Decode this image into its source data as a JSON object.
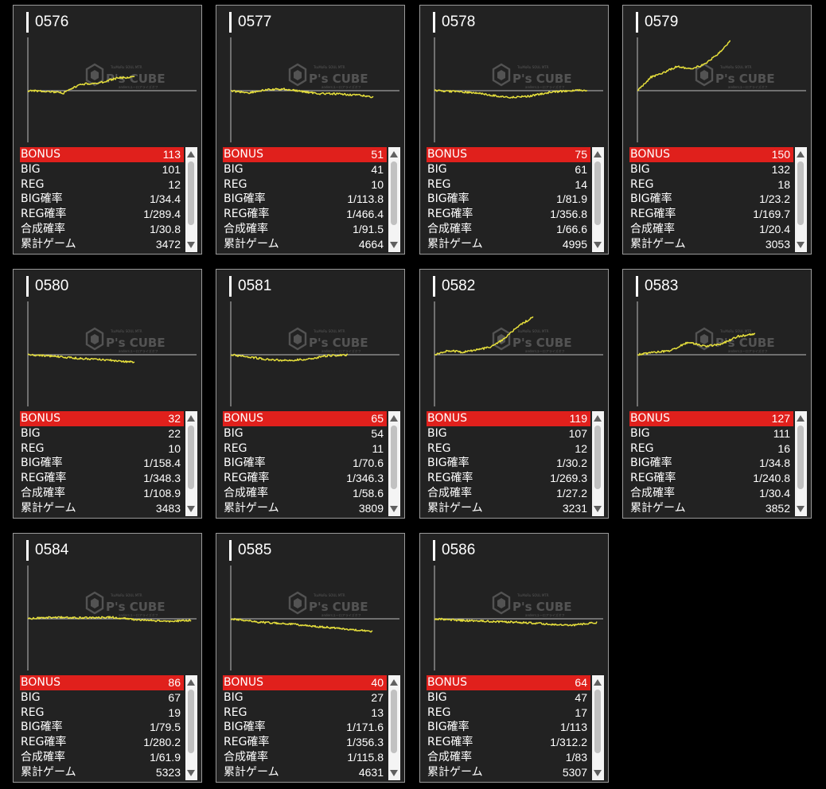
{
  "colors": {
    "background": "#000000",
    "card": "#222222",
    "card_border": "#9a9a9a",
    "highlight_row": "#e0201c",
    "trend_line": "#e6df3c",
    "baseline": "#bdbdbd"
  },
  "watermark": {
    "brand": "P's CUBE",
    "tagline_top": "TsuMoRu SOUL MTR",
    "tagline_bottom": "andersユーロアライズオフ"
  },
  "icons": {
    "scroll_up": "triangle-up-icon",
    "scroll_down": "triangle-down-icon",
    "logo": "cube-logo-icon"
  },
  "labels": {
    "bonus": "BONUS",
    "big": "BIG",
    "reg": "REG",
    "big_rate": "BIG確率",
    "reg_rate": "REG確率",
    "combined_rate": "合成確率",
    "total_games": "累計ゲーム"
  },
  "machines": [
    {
      "id": "0576",
      "bonus": "113",
      "big": "101",
      "reg": "12",
      "big_rate": "1/34.4",
      "reg_rate": "1/289.4",
      "combined_rate": "1/30.8",
      "total_games": "3472",
      "trend": [
        0,
        -50,
        -300,
        800,
        900,
        1500,
        1650
      ]
    },
    {
      "id": "0577",
      "bonus": "51",
      "big": "41",
      "reg": "10",
      "big_rate": "1/113.8",
      "reg_rate": "1/466.4",
      "combined_rate": "1/91.5",
      "total_games": "4664",
      "trend": [
        0,
        -250,
        100,
        200,
        -100,
        -350,
        -400,
        -500,
        -750
      ]
    },
    {
      "id": "0578",
      "bonus": "75",
      "big": "61",
      "reg": "14",
      "big_rate": "1/81.9",
      "reg_rate": "1/356.8",
      "combined_rate": "1/66.6",
      "total_games": "4995",
      "trend": [
        0,
        -100,
        -250,
        -550,
        -800,
        -650,
        -200,
        0,
        50
      ]
    },
    {
      "id": "0579",
      "bonus": "150",
      "big": "132",
      "reg": "18",
      "big_rate": "1/23.2",
      "reg_rate": "1/169.7",
      "combined_rate": "1/20.4",
      "total_games": "3053",
      "trend": [
        0,
        1600,
        2200,
        2900,
        2600,
        3100,
        4300,
        6000
      ]
    },
    {
      "id": "0580",
      "bonus": "32",
      "big": "22",
      "reg": "10",
      "big_rate": "1/158.4",
      "reg_rate": "1/348.3",
      "combined_rate": "1/108.9",
      "total_games": "3483",
      "trend": [
        0,
        -200,
        -450,
        -650,
        -900
      ]
    },
    {
      "id": "0581",
      "bonus": "65",
      "big": "54",
      "reg": "11",
      "big_rate": "1/70.6",
      "reg_rate": "1/346.3",
      "combined_rate": "1/58.6",
      "total_games": "3809",
      "trend": [
        0,
        -300,
        -600,
        -700,
        -500,
        -100,
        0
      ]
    },
    {
      "id": "0582",
      "bonus": "119",
      "big": "107",
      "reg": "12",
      "big_rate": "1/30.2",
      "reg_rate": "1/269.3",
      "combined_rate": "1/27.2",
      "total_games": "3231",
      "trend": [
        0,
        500,
        300,
        600,
        900,
        2000,
        3500,
        4500
      ]
    },
    {
      "id": "0583",
      "bonus": "127",
      "big": "111",
      "reg": "16",
      "big_rate": "1/34.8",
      "reg_rate": "1/240.8",
      "combined_rate": "1/30.4",
      "total_games": "3852",
      "trend": [
        0,
        300,
        500,
        1500,
        1000,
        1300,
        2200,
        2500
      ]
    },
    {
      "id": "0584",
      "bonus": "86",
      "big": "67",
      "reg": "19",
      "big_rate": "1/79.5",
      "reg_rate": "1/280.2",
      "combined_rate": "1/61.9",
      "total_games": "5323",
      "trend": [
        0,
        200,
        100,
        200,
        -100,
        -300,
        -200
      ]
    },
    {
      "id": "0585",
      "bonus": "40",
      "big": "27",
      "reg": "13",
      "big_rate": "1/171.6",
      "reg_rate": "1/356.3",
      "combined_rate": "1/115.8",
      "total_games": "4631",
      "trend": [
        0,
        -400,
        -600,
        -900,
        -1200,
        -1500
      ]
    },
    {
      "id": "0586",
      "bonus": "64",
      "big": "47",
      "reg": "17",
      "big_rate": "1/113",
      "reg_rate": "1/312.2",
      "combined_rate": "1/83",
      "total_games": "5307",
      "trend": [
        0,
        -200,
        -300,
        -400,
        -600,
        -800,
        -450
      ]
    }
  ]
}
